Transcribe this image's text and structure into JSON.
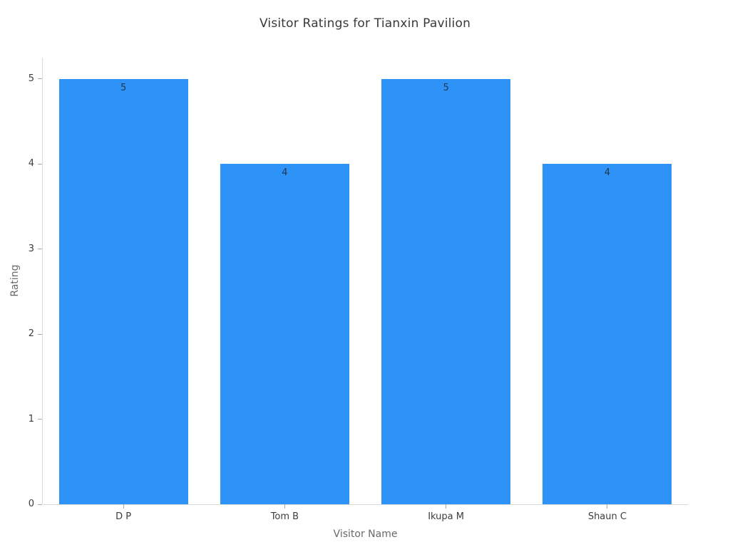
{
  "chart_data": {
    "type": "bar",
    "title": "Visitor Ratings for Tianxin Pavilion",
    "xlabel": "Visitor Name",
    "ylabel": "Rating",
    "categories": [
      "D P",
      "Tom B",
      "Ikupa M",
      "Shaun C"
    ],
    "values": [
      5,
      4,
      5,
      4
    ],
    "bar_labels": [
      "5",
      "4",
      "5",
      "4"
    ],
    "yticks": [
      0,
      1,
      2,
      3,
      4,
      5
    ],
    "ylim": [
      0,
      5.25
    ],
    "grid": false,
    "legend": "none",
    "bar_color": "#2e93f6",
    "bar_label_color": "#20374f",
    "axis_line_color": "#dadada",
    "tick_label_color": "#3d3d3d",
    "axis_title_color": "#696969"
  }
}
